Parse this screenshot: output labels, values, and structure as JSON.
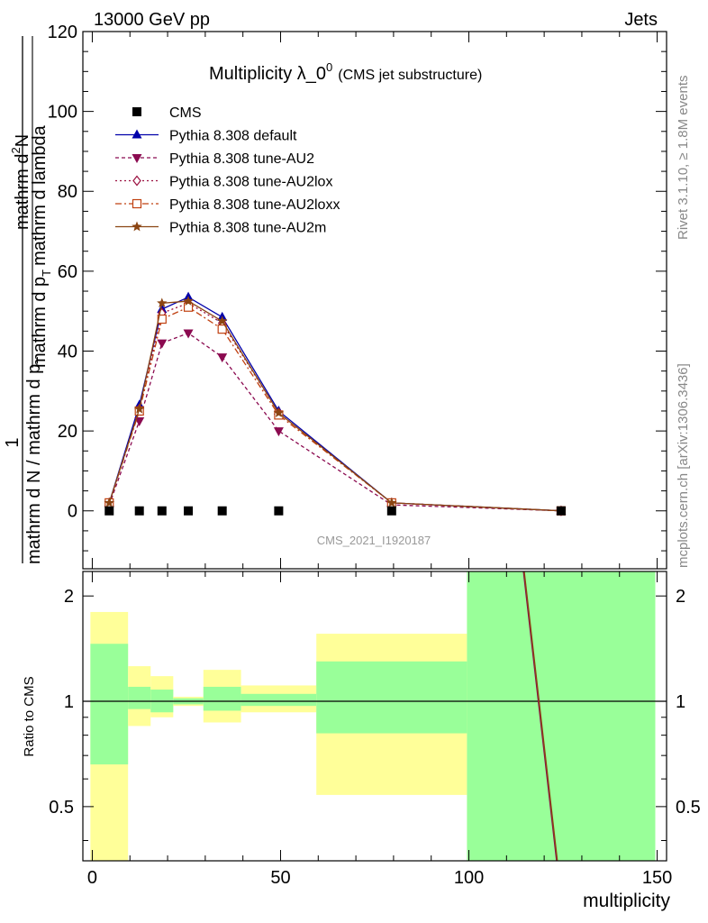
{
  "header": {
    "left": "13000 GeV pp",
    "right": "Jets"
  },
  "side_labels": {
    "rivet": "Rivet 3.1.10, ≥ 1.8M events",
    "mcplots": "mcplots.cern.ch [arXiv:1306.3436]"
  },
  "watermark": "CMS_2021_I1920187",
  "colors": {
    "cms": "#000000",
    "default": "#0000aa",
    "au2": "#8b0a50",
    "au2lox": "#9b1040",
    "au2loxx": "#c04010",
    "au2m": "#8b4513",
    "band_inner": "#99ff99",
    "band_outer": "#ffff99"
  },
  "chart_data": [
    {
      "type": "line",
      "title_main": "Multiplicity λ_0",
      "title_sup": "0",
      "title_note": "(CMS jet substructure)",
      "ylabel_parts": {
        "one": "1",
        "den": "mathrm d N / mathrm d p",
        "den_sub": "T",
        "num1": "mathrm d",
        "num1_sup": "2",
        "num2": "N",
        "den2": "mathrm d p",
        "den2_sub": "T",
        "den3": "mathrm d lambda"
      },
      "xlim": [
        -2.5,
        152.5
      ],
      "ylim": [
        -14.5,
        120
      ],
      "y_ticks": [
        0,
        20,
        40,
        60,
        80,
        100,
        120
      ],
      "legend_position": "top-left",
      "x": [
        4.5,
        12.5,
        18.5,
        25.5,
        34.5,
        49.5,
        79.5,
        124.5
      ],
      "series": [
        {
          "key": "cms",
          "name": "CMS",
          "marker": "square",
          "dash": "",
          "values": [
            0,
            0,
            0,
            0,
            0,
            0,
            0,
            0
          ]
        },
        {
          "key": "default",
          "name": "Pythia 8.308 default",
          "marker": "triangle-up",
          "dash": "",
          "values": [
            2,
            26.5,
            50.5,
            53.5,
            48.5,
            25,
            2,
            0
          ]
        },
        {
          "key": "au2",
          "name": "Pythia 8.308 tune-AU2",
          "marker": "triangle-down",
          "dash": "4,3",
          "values": [
            1.5,
            22.5,
            42,
            44.5,
            38.5,
            20,
            1.5,
            0
          ]
        },
        {
          "key": "au2lox",
          "name": "Pythia 8.308 tune-AU2lox",
          "marker": "diamond",
          "dash": "2,3",
          "values": [
            2,
            25.5,
            49.5,
            52,
            47,
            24.5,
            2,
            0
          ]
        },
        {
          "key": "au2loxx",
          "name": "Pythia 8.308 tune-AU2loxx",
          "marker": "square-open",
          "dash": "7,3,2,3",
          "values": [
            2,
            25,
            48,
            51,
            45.5,
            24,
            2,
            0
          ]
        },
        {
          "key": "au2m",
          "name": "Pythia 8.308 tune-AU2m",
          "marker": "star",
          "dash": "",
          "values": [
            2,
            25.5,
            52,
            52.5,
            47.5,
            24.5,
            2,
            0
          ]
        }
      ]
    },
    {
      "type": "area",
      "ylabel": "Ratio to CMS",
      "xlabel": "multiplicity",
      "xlim": [
        -2.5,
        152.5
      ],
      "ylim": [
        0.35,
        2.35
      ],
      "log_y": true,
      "x_ticks": [
        0,
        50,
        100,
        150
      ],
      "y_ticks": [
        "0.5",
        "1",
        "2"
      ],
      "reference_line": 1,
      "bands": [
        {
          "x0": -0.5,
          "x1": 9.5,
          "inner": [
            0.66,
            1.46
          ],
          "outer": [
            0.3,
            1.8
          ]
        },
        {
          "x0": 9.5,
          "x1": 15.5,
          "inner": [
            0.95,
            1.1
          ],
          "outer": [
            0.85,
            1.26
          ]
        },
        {
          "x0": 15.5,
          "x1": 21.5,
          "inner": [
            0.93,
            1.08
          ],
          "outer": [
            0.9,
            1.18
          ]
        },
        {
          "x0": 21.5,
          "x1": 29.5,
          "inner": [
            0.98,
            1.02
          ],
          "outer": [
            0.97,
            1.03
          ]
        },
        {
          "x0": 29.5,
          "x1": 39.5,
          "inner": [
            0.94,
            1.1
          ],
          "outer": [
            0.87,
            1.23
          ]
        },
        {
          "x0": 39.5,
          "x1": 59.5,
          "inner": [
            0.97,
            1.05
          ],
          "outer": [
            0.93,
            1.11
          ]
        },
        {
          "x0": 59.5,
          "x1": 99.5,
          "inner": [
            0.81,
            1.3
          ],
          "outer": [
            0.54,
            1.56
          ]
        },
        {
          "x0": 99.5,
          "x1": 149.5,
          "inner": [
            0.3,
            3.0
          ],
          "outer": [
            0.3,
            3.0
          ]
        }
      ],
      "ratio_lines": [
        {
          "key": "au2",
          "points": [
            [
              114.5,
              3.0
            ],
            [
              123.3,
              0.3
            ]
          ]
        },
        {
          "key": "au2m",
          "points": [
            [
              114.7,
              3.0
            ],
            [
              123.5,
              0.3
            ]
          ]
        }
      ]
    }
  ]
}
